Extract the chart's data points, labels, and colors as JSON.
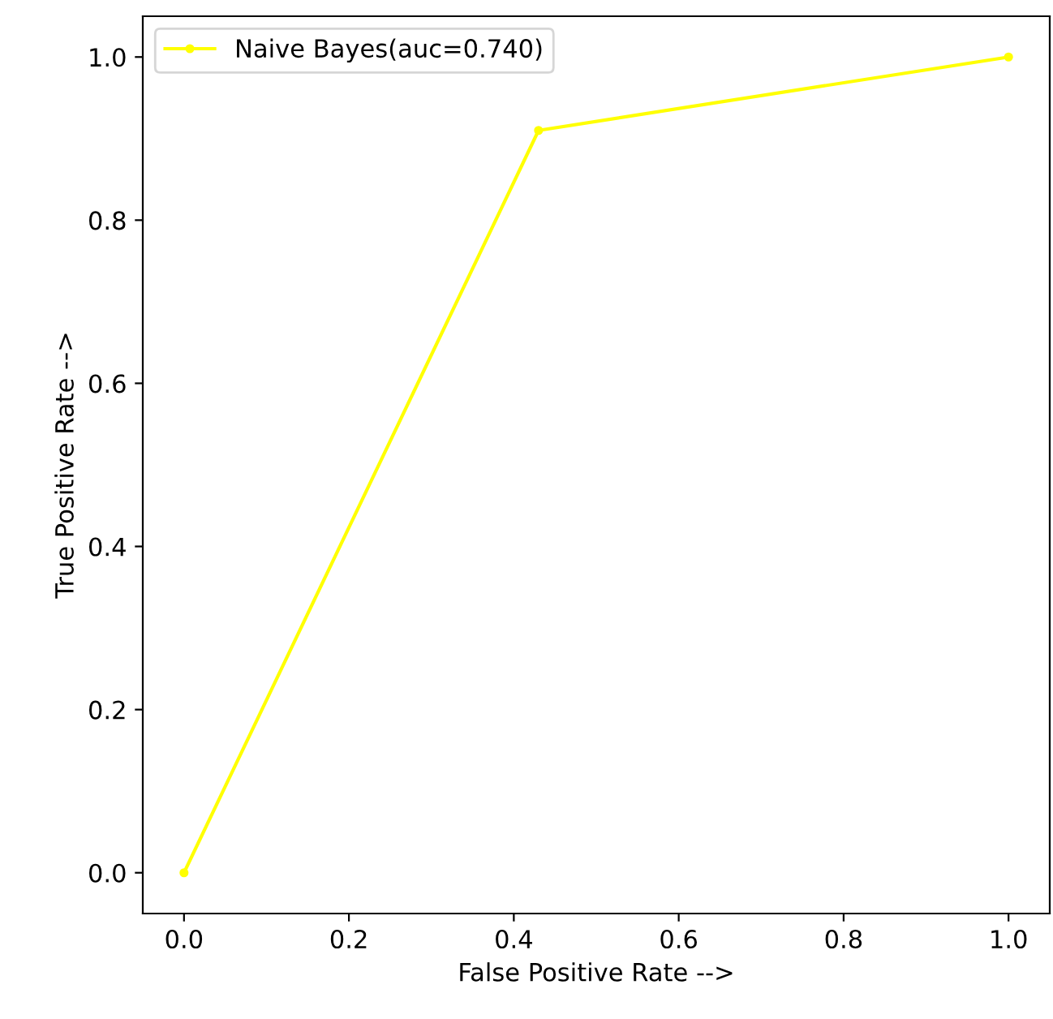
{
  "chart_data": {
    "type": "line",
    "xlabel": "False Positive Rate -->",
    "ylabel": "True Positive Rate -->",
    "x": [
      0.0,
      0.43,
      1.0
    ],
    "series": [
      {
        "name": "Naive Bayes(auc=0.740)",
        "color": "#ffff00",
        "values": [
          0.0,
          0.91,
          1.0
        ]
      }
    ],
    "xlim": [
      -0.05,
      1.05
    ],
    "ylim": [
      -0.05,
      1.05
    ],
    "xticks": [
      {
        "value": 0,
        "label": "0.0"
      },
      0.2,
      0.4,
      0.6,
      0.8,
      {
        "value": 1,
        "label": "1.0"
      }
    ],
    "yticks": [
      {
        "value": 0,
        "label": "0.0"
      },
      0.2,
      0.4,
      0.6,
      0.8,
      {
        "value": 1,
        "label": "1.0"
      }
    ],
    "marker": "circle",
    "line_style": "solid",
    "legend": "top left",
    "grid": false
  }
}
